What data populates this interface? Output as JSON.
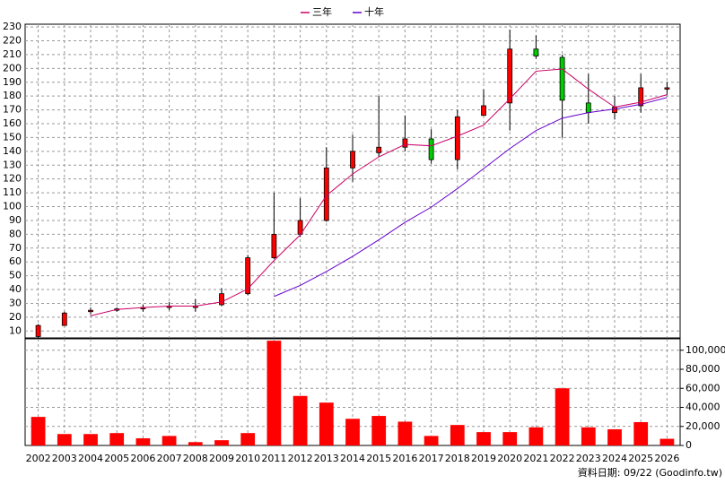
{
  "chart_data": [
    {
      "type": "candlestick",
      "open": [
        6,
        14,
        24,
        25,
        26,
        27,
        27,
        29,
        37,
        63,
        80,
        90,
        128,
        139,
        143,
        149,
        134,
        166,
        175,
        214,
        208,
        175,
        168,
        173,
        185
      ],
      "high": [
        15,
        24,
        27,
        27,
        29,
        31,
        33,
        41,
        65,
        110,
        106,
        143,
        152,
        180,
        166,
        156,
        170,
        185,
        228,
        224,
        210,
        196,
        180,
        196,
        190
      ],
      "low": [
        5,
        14,
        22,
        24,
        24,
        25,
        24,
        28,
        36,
        62,
        78,
        89,
        118,
        136,
        140,
        131,
        127,
        166,
        155,
        207,
        150,
        160,
        163,
        168,
        181
      ],
      "close": [
        14,
        23,
        25,
        26,
        27,
        28,
        28,
        37,
        63,
        80,
        90,
        128,
        140,
        143,
        149,
        134,
        165,
        173,
        214,
        209,
        177,
        168,
        172,
        186,
        186
      ],
      "up_color": "#ff0000",
      "down_color": "#00cc00",
      "series": [
        {
          "name": "三年",
          "color": "#cc0066",
          "values": [
            null,
            null,
            21,
            25.6,
            27,
            28,
            28,
            31,
            40.5,
            61,
            79.5,
            108,
            123.6,
            136,
            145,
            144,
            151,
            159,
            178,
            198,
            199.6,
            185,
            172,
            175.6,
            181
          ]
        },
        {
          "name": "十年",
          "color": "#6600cc",
          "values": [
            null,
            null,
            null,
            null,
            null,
            null,
            null,
            null,
            null,
            35,
            43,
            53,
            64,
            76,
            88.6,
            99.6,
            113,
            127.5,
            142,
            155,
            164,
            168,
            170.6,
            174,
            179
          ]
        }
      ],
      "ylim": [
        5,
        232
      ],
      "yticks": [
        10,
        20,
        30,
        40,
        50,
        60,
        70,
        80,
        90,
        100,
        110,
        120,
        130,
        140,
        150,
        160,
        170,
        180,
        190,
        200,
        210,
        220,
        230
      ],
      "grid": true,
      "legend": "top"
    },
    {
      "type": "bar",
      "categories": [
        "2002",
        "2003",
        "2004",
        "2005",
        "2006",
        "2007",
        "2008",
        "2009",
        "2010",
        "2011",
        "2012",
        "2013",
        "2014",
        "2015",
        "2016",
        "2017",
        "2018",
        "2019",
        "2020",
        "2021",
        "2022",
        "2023",
        "2024",
        "2025",
        "2026"
      ],
      "values": [
        30000,
        12000,
        12000,
        13000,
        7500,
        10000,
        3500,
        5500,
        13000,
        110000,
        52000,
        45000,
        28000,
        31000,
        25000,
        10000,
        21500,
        14000,
        14000,
        19000,
        60000,
        19000,
        17000,
        24500,
        7000
      ],
      "color": "#ff0000",
      "ylim": [
        0,
        112000
      ],
      "yticks": [
        0,
        {
          "value": 20000,
          "label": "20,000"
        },
        {
          "value": 40000,
          "label": "40,000"
        },
        {
          "value": 60000,
          "label": "60,000"
        },
        {
          "value": 80000,
          "label": "80,000"
        },
        {
          "value": 100000,
          "label": "100,000"
        }
      ],
      "grid": true,
      "footnote": "資料日期: 09/22 (Goodinfo.tw)"
    }
  ]
}
